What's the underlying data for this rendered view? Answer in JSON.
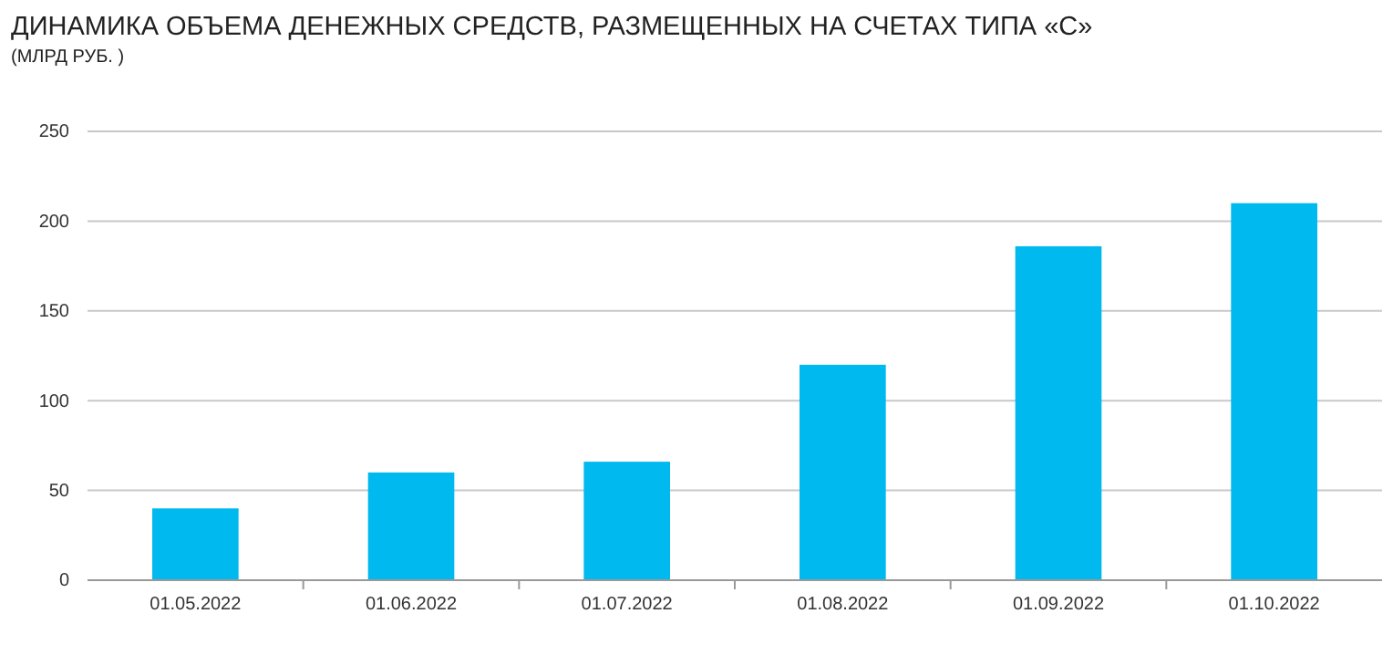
{
  "chart_data": {
    "type": "bar",
    "title": "ДИНАМИКА ОБЪЕМА ДЕНЕЖНЫХ СРЕДСТВ, РАЗМЕЩЕННЫХ НА СЧЕТАХ ТИПА «С»",
    "subtitle": "(МЛРД РУБ. )",
    "categories": [
      "01.05.2022",
      "01.06.2022",
      "01.07.2022",
      "01.08.2022",
      "01.09.2022",
      "01.10.2022"
    ],
    "values": [
      40,
      60,
      66,
      120,
      186,
      210
    ],
    "color": "#00b9ef",
    "ylim": [
      0,
      250
    ],
    "yticks": [
      0,
      50,
      100,
      150,
      200,
      250
    ],
    "grid": "y"
  }
}
